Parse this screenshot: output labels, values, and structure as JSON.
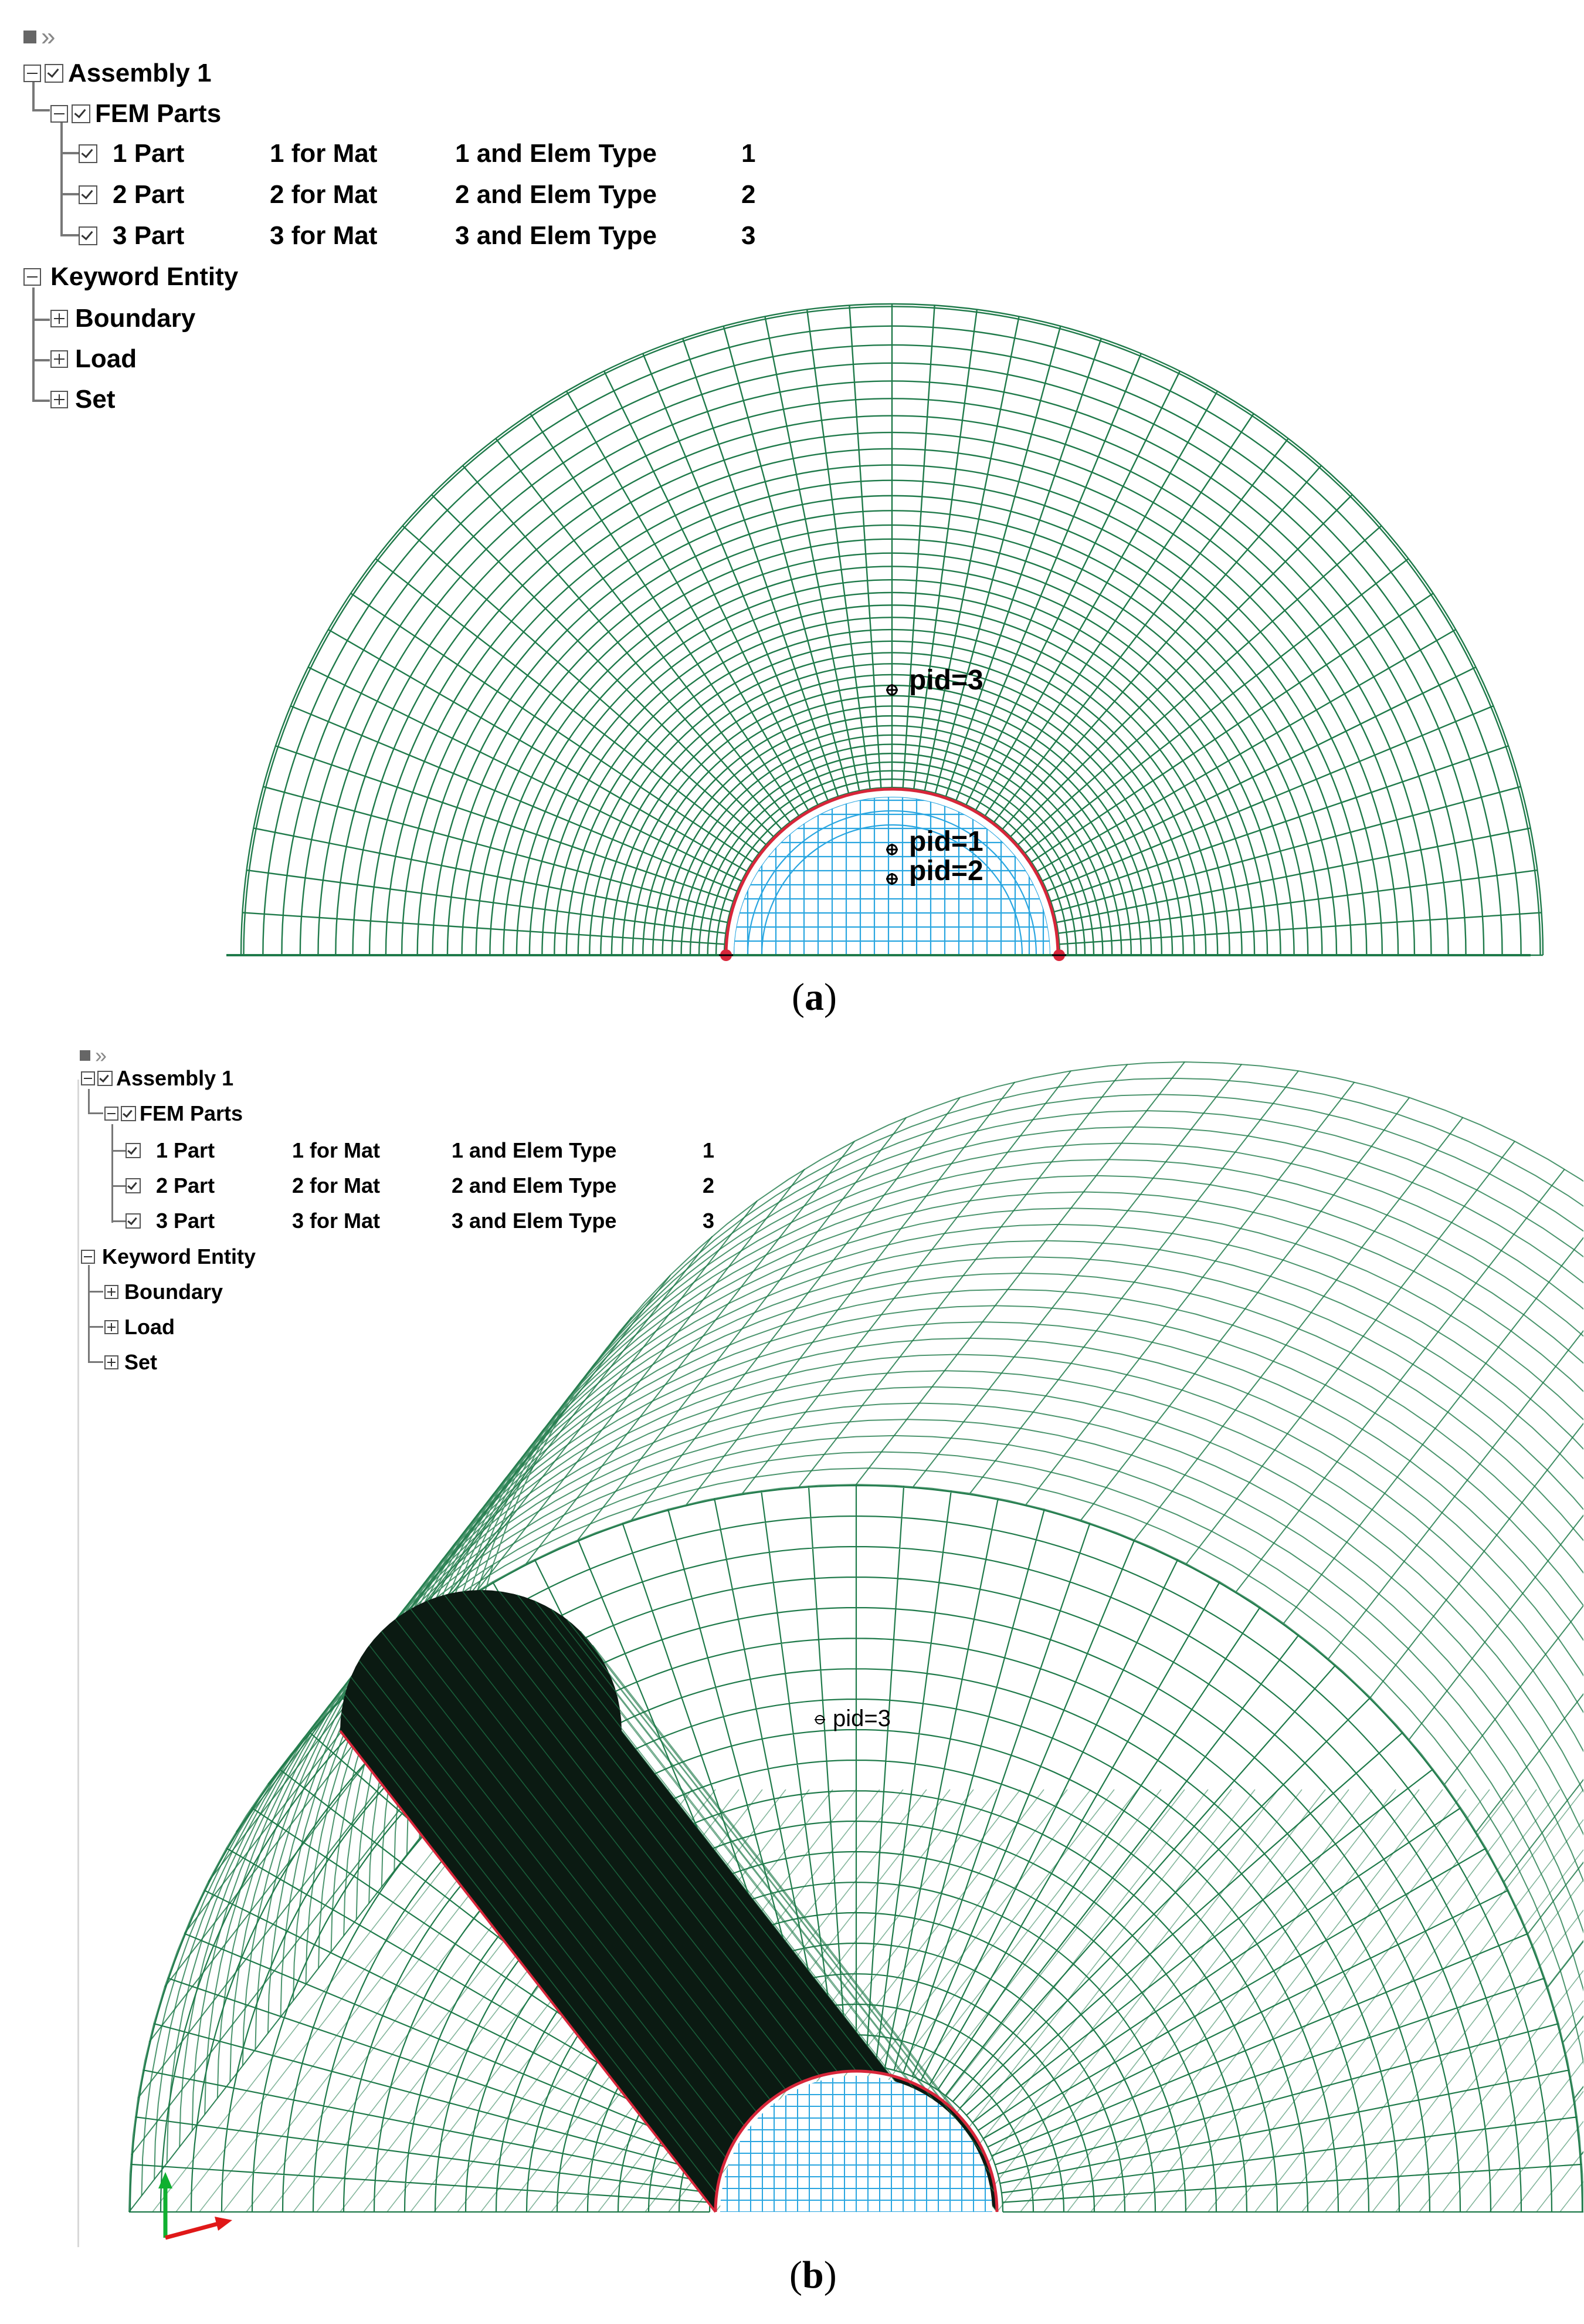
{
  "panel_a": {
    "toolbar": {
      "chevron": "»"
    },
    "tree": {
      "assembly": "Assembly 1",
      "fem_parts": "FEM Parts",
      "parts": [
        {
          "name": "1 Part",
          "mat": "1 for Mat",
          "elem": "1 and Elem Type",
          "type": "1"
        },
        {
          "name": "2 Part",
          "mat": "2 for Mat",
          "elem": "2 and Elem Type",
          "type": "2"
        },
        {
          "name": "3 Part",
          "mat": "3 for Mat",
          "elem": "3 and Elem Type",
          "type": "3"
        }
      ],
      "keyword_entity": "Keyword Entity",
      "keywords": [
        "Boundary",
        "Load",
        "Set"
      ]
    },
    "labels": {
      "pid3": "pid=3",
      "pid1": "pid=1",
      "pid2": "pid=2"
    },
    "caption": {
      "open": "(",
      "letter": "a",
      "close": ")"
    }
  },
  "panel_b": {
    "toolbar": {
      "chevron": "»"
    },
    "tree": {
      "assembly": "Assembly 1",
      "fem_parts": "FEM Parts",
      "parts": [
        {
          "name": "1 Part",
          "mat": "1 for Mat",
          "elem": "1 and Elem Type",
          "type": "1"
        },
        {
          "name": "2 Part",
          "mat": "2 for Mat",
          "elem": "2 and Elem Type",
          "type": "2"
        },
        {
          "name": "3 Part",
          "mat": "3 for Mat",
          "elem": "3 and Elem Type",
          "type": "3"
        }
      ],
      "keyword_entity": "Keyword Entity",
      "keywords": [
        "Boundary",
        "Load",
        "Set"
      ]
    },
    "labels": {
      "pid3": "pid=3"
    },
    "caption": {
      "open": "(",
      "letter": "b",
      "close": ")"
    }
  },
  "colors": {
    "outer_mesh": "#1f7a4a",
    "inner_mesh": "#2aa6e0",
    "lining": "#d8263a",
    "tunnel_dark": "#0b1a12"
  }
}
